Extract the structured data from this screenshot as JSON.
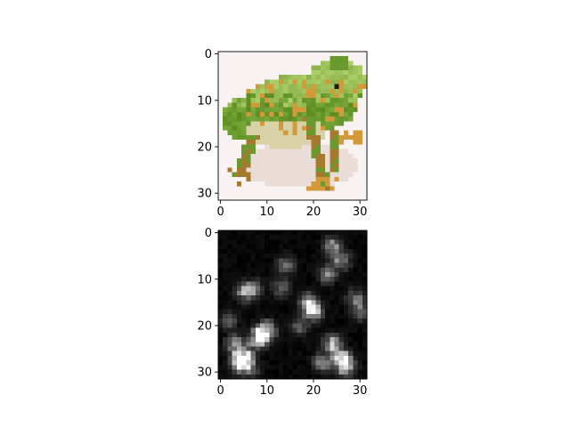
{
  "chart_data": [
    {
      "type": "heatmap",
      "subject": "frog",
      "resolution": [
        32,
        32
      ],
      "colormap": "rgb",
      "title": "",
      "xlabel": "",
      "ylabel": "",
      "xlim": [
        -0.5,
        31.5
      ],
      "ylim": [
        31.5,
        -0.5
      ],
      "xticks": [
        0,
        10,
        20,
        30
      ],
      "yticks": [
        0,
        10,
        20,
        30
      ],
      "xtick_labels": [
        "0",
        "10",
        "20",
        "30"
      ],
      "ytick_labels": [
        "0",
        "10",
        "20",
        "30"
      ],
      "background_color": "#f8f3f2",
      "frog_colors": {
        "body_green": "#6a9a2e",
        "light_green": "#9cc05a",
        "belly": "#d9d2a6",
        "spots_orange": "#d49a3a",
        "legs_brown": "#a67a2e",
        "shadow": "#eadcd6"
      }
    },
    {
      "type": "heatmap",
      "resolution": [
        32,
        32
      ],
      "colormap": "gray",
      "title": "",
      "xlabel": "",
      "ylabel": "",
      "xlim": [
        -0.5,
        31.5
      ],
      "ylim": [
        31.5,
        -0.5
      ],
      "xticks": [
        0,
        10,
        20,
        30
      ],
      "yticks": [
        0,
        10,
        20,
        30
      ],
      "xtick_labels": [
        "0",
        "10",
        "20",
        "30"
      ],
      "ytick_labels": [
        "0",
        "10",
        "20",
        "30"
      ],
      "hotspots": [
        [
          5,
          26,
          0.85
        ],
        [
          4,
          28,
          0.9
        ],
        [
          6,
          29,
          0.7
        ],
        [
          3,
          24,
          0.55
        ],
        [
          9,
          22,
          0.8
        ],
        [
          10,
          21,
          0.65
        ],
        [
          8,
          23,
          0.6
        ],
        [
          20,
          17,
          0.85
        ],
        [
          19,
          15,
          0.6
        ],
        [
          24,
          24,
          0.8
        ],
        [
          26,
          27,
          0.9
        ],
        [
          27,
          29,
          0.85
        ],
        [
          22,
          28,
          0.6
        ],
        [
          24,
          3,
          0.6
        ],
        [
          26,
          6,
          0.55
        ],
        [
          23,
          9,
          0.5
        ],
        [
          5,
          13,
          0.55
        ],
        [
          7,
          12,
          0.5
        ],
        [
          14,
          7,
          0.45
        ],
        [
          13,
          12,
          0.45
        ],
        [
          29,
          14,
          0.45
        ],
        [
          30,
          17,
          0.4
        ],
        [
          17,
          20,
          0.4
        ],
        [
          2,
          19,
          0.35
        ]
      ]
    }
  ]
}
